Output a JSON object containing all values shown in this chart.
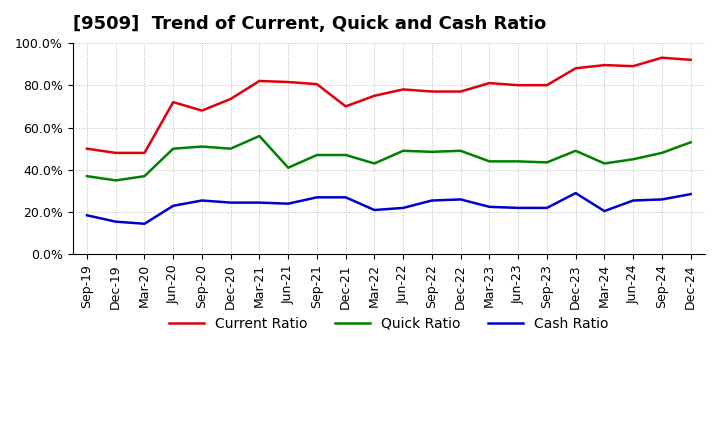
{
  "title": "[9509]  Trend of Current, Quick and Cash Ratio",
  "labels": [
    "Sep-19",
    "Dec-19",
    "Mar-20",
    "Jun-20",
    "Sep-20",
    "Dec-20",
    "Mar-21",
    "Jun-21",
    "Sep-21",
    "Dec-21",
    "Mar-22",
    "Jun-22",
    "Sep-22",
    "Dec-22",
    "Mar-23",
    "Jun-23",
    "Sep-23",
    "Dec-23",
    "Mar-24",
    "Jun-24",
    "Sep-24",
    "Dec-24"
  ],
  "current_ratio": [
    50.0,
    48.0,
    48.0,
    72.0,
    68.0,
    73.5,
    82.0,
    81.5,
    80.5,
    70.0,
    75.0,
    78.0,
    77.0,
    77.0,
    81.0,
    80.0,
    80.0,
    88.0,
    89.5,
    89.0,
    93.0,
    92.0
  ],
  "quick_ratio": [
    37.0,
    35.0,
    37.0,
    50.0,
    51.0,
    50.0,
    56.0,
    41.0,
    47.0,
    47.0,
    43.0,
    49.0,
    48.5,
    49.0,
    44.0,
    44.0,
    43.5,
    49.0,
    43.0,
    45.0,
    48.0,
    53.0
  ],
  "cash_ratio": [
    18.5,
    15.5,
    14.5,
    23.0,
    25.5,
    24.5,
    24.5,
    24.0,
    27.0,
    27.0,
    21.0,
    22.0,
    25.5,
    26.0,
    22.5,
    22.0,
    22.0,
    29.0,
    20.5,
    25.5,
    26.0,
    28.5
  ],
  "current_color": "#e0000a",
  "quick_color": "#008000",
  "cash_color": "#0000cd",
  "ylim": [
    0,
    100
  ],
  "yticks": [
    0,
    20,
    40,
    60,
    80,
    100
  ],
  "ytick_labels": [
    "0.0%",
    "20.0%",
    "40.0%",
    "60.0%",
    "80.0%",
    "100.0%"
  ],
  "legend_labels": [
    "Current Ratio",
    "Quick Ratio",
    "Cash Ratio"
  ],
  "background_color": "#ffffff",
  "grid_color": "#aaaaaa",
  "title_fontsize": 13,
  "axis_fontsize": 9,
  "legend_fontsize": 10,
  "linewidth": 1.8
}
